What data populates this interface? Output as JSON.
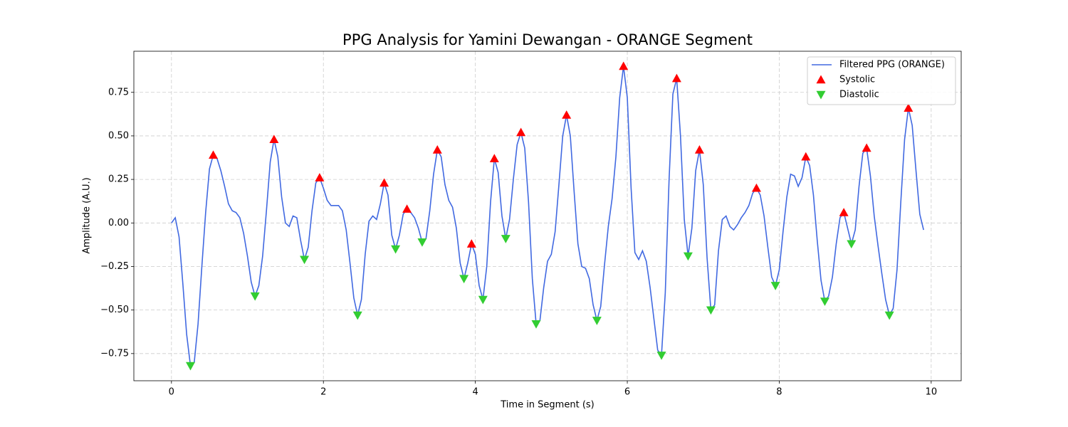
{
  "chart_data": {
    "type": "line",
    "title": "PPG Analysis for Yamini Dewangan - ORANGE Segment",
    "xlabel": "Time in Segment (s)",
    "ylabel": "Amplitude (A.U.)",
    "xlim": [
      -0.495,
      10.395
    ],
    "ylim": [
      -0.906,
      0.986
    ],
    "xticks": [
      0,
      2,
      4,
      6,
      8,
      10
    ],
    "yticks": [
      {
        "value": -0.75,
        "label": "−0.75"
      },
      {
        "value": -0.5,
        "label": "−0.50"
      },
      {
        "value": -0.25,
        "label": "−0.25"
      },
      {
        "value": 0,
        "label": "0.00"
      },
      0.25,
      {
        "value": 0.5,
        "label": "0.50"
      },
      0.75
    ],
    "grid": true,
    "legend": "upper right",
    "series": [
      {
        "name": "Filtered PPG (ORANGE)",
        "color": "#4169e1",
        "x": [
          0,
          0.05,
          0.1,
          0.15,
          0.2,
          0.25,
          0.3,
          0.35,
          0.4,
          0.45,
          0.5,
          0.55,
          0.6,
          0.65,
          0.7,
          0.75,
          0.8,
          0.85,
          0.9,
          0.95,
          1,
          1.05,
          1.1,
          1.15,
          1.2,
          1.25,
          1.3,
          1.35,
          1.4,
          1.45,
          1.5,
          1.55,
          1.6,
          1.65,
          1.7,
          1.75,
          1.8,
          1.85,
          1.9,
          1.95,
          2,
          2.05,
          2.1,
          2.15,
          2.2,
          2.25,
          2.3,
          2.35,
          2.4,
          2.45,
          2.5,
          2.55,
          2.6,
          2.65,
          2.7,
          2.75,
          2.8,
          2.85,
          2.9,
          2.95,
          3,
          3.05,
          3.1,
          3.15,
          3.2,
          3.25,
          3.3,
          3.35,
          3.4,
          3.45,
          3.5,
          3.55,
          3.6,
          3.65,
          3.7,
          3.75,
          3.8,
          3.85,
          3.9,
          3.95,
          4,
          4.05,
          4.1,
          4.15,
          4.2,
          4.25,
          4.3,
          4.35,
          4.4,
          4.45,
          4.5,
          4.55,
          4.6,
          4.65,
          4.7,
          4.75,
          4.8,
          4.85,
          4.9,
          4.95,
          5,
          5.05,
          5.1,
          5.15,
          5.2,
          5.25,
          5.3,
          5.35,
          5.4,
          5.45,
          5.5,
          5.55,
          5.6,
          5.65,
          5.7,
          5.75,
          5.8,
          5.85,
          5.9,
          5.95,
          6,
          6.05,
          6.1,
          6.15,
          6.2,
          6.25,
          6.3,
          6.35,
          6.4,
          6.45,
          6.5,
          6.55,
          6.6,
          6.65,
          6.7,
          6.75,
          6.8,
          6.85,
          6.9,
          6.95,
          7,
          7.05,
          7.1,
          7.15,
          7.2,
          7.25,
          7.3,
          7.35,
          7.4,
          7.45,
          7.5,
          7.55,
          7.6,
          7.65,
          7.7,
          7.75,
          7.8,
          7.85,
          7.9,
          7.95,
          8,
          8.05,
          8.1,
          8.15,
          8.2,
          8.25,
          8.3,
          8.35,
          8.4,
          8.45,
          8.5,
          8.55,
          8.6,
          8.65,
          8.7,
          8.75,
          8.8,
          8.85,
          8.9,
          8.95,
          9,
          9.05,
          9.1,
          9.15,
          9.2,
          9.25,
          9.3,
          9.35,
          9.4,
          9.45,
          9.5,
          9.55,
          9.6,
          9.65,
          9.7,
          9.75,
          9.8,
          9.85,
          9.9
        ],
        "values": [
          0,
          0.03,
          -0.08,
          -0.35,
          -0.64,
          -0.82,
          -0.8,
          -0.58,
          -0.25,
          0.06,
          0.31,
          0.39,
          0.37,
          0.3,
          0.21,
          0.11,
          0.07,
          0.06,
          0.03,
          -0.06,
          -0.19,
          -0.34,
          -0.42,
          -0.36,
          -0.19,
          0.07,
          0.35,
          0.48,
          0.38,
          0.15,
          0,
          -0.02,
          0.04,
          0.03,
          -0.1,
          -0.21,
          -0.14,
          0.07,
          0.23,
          0.26,
          0.2,
          0.13,
          0.1,
          0.1,
          0.1,
          0.07,
          -0.04,
          -0.23,
          -0.43,
          -0.53,
          -0.44,
          -0.18,
          0.01,
          0.04,
          0.02,
          0.11,
          0.23,
          0.16,
          -0.07,
          -0.15,
          -0.07,
          0.05,
          0.08,
          0.06,
          0.03,
          -0.03,
          -0.11,
          -0.09,
          0.07,
          0.28,
          0.42,
          0.38,
          0.22,
          0.13,
          0.09,
          -0.03,
          -0.23,
          -0.32,
          -0.23,
          -0.12,
          -0.18,
          -0.36,
          -0.44,
          -0.25,
          0.12,
          0.37,
          0.29,
          0.04,
          -0.09,
          0.02,
          0.25,
          0.45,
          0.52,
          0.43,
          0.12,
          -0.32,
          -0.58,
          -0.56,
          -0.37,
          -0.22,
          -0.18,
          -0.05,
          0.22,
          0.5,
          0.62,
          0.5,
          0.18,
          -0.12,
          -0.25,
          -0.26,
          -0.32,
          -0.47,
          -0.56,
          -0.48,
          -0.24,
          -0.02,
          0.14,
          0.38,
          0.72,
          0.9,
          0.72,
          0.2,
          -0.17,
          -0.21,
          -0.16,
          -0.22,
          -0.37,
          -0.55,
          -0.73,
          -0.76,
          -0.4,
          0.25,
          0.74,
          0.83,
          0.5,
          0.02,
          -0.19,
          -0.03,
          0.3,
          0.42,
          0.22,
          -0.2,
          -0.5,
          -0.47,
          -0.16,
          0.02,
          0.04,
          -0.02,
          -0.04,
          -0.01,
          0.03,
          0.06,
          0.1,
          0.17,
          0.2,
          0.16,
          0.04,
          -0.14,
          -0.31,
          -0.36,
          -0.27,
          -0.05,
          0.15,
          0.28,
          0.27,
          0.21,
          0.26,
          0.38,
          0.33,
          0.16,
          -0.1,
          -0.33,
          -0.45,
          -0.42,
          -0.31,
          -0.12,
          0.03,
          0.06,
          -0.03,
          -0.12,
          -0.04,
          0.21,
          0.4,
          0.43,
          0.27,
          0.04,
          -0.13,
          -0.29,
          -0.44,
          -0.53,
          -0.49,
          -0.27,
          0.12,
          0.48,
          0.66,
          0.56,
          0.3,
          0.05,
          -0.04
        ]
      },
      {
        "name": "Systolic",
        "type": "scatter",
        "marker": "triangle-up",
        "color": "#ff0000",
        "x": [
          0.55,
          1.35,
          1.95,
          2.8,
          3.1,
          3.5,
          3.95,
          4.25,
          4.6,
          5.2,
          5.95,
          6.65,
          6.95,
          7.7,
          8.35,
          8.85,
          9.15,
          9.7
        ],
        "values": [
          0.39,
          0.48,
          0.26,
          0.23,
          0.08,
          0.42,
          -0.12,
          0.37,
          0.52,
          0.62,
          0.9,
          0.83,
          0.42,
          0.2,
          0.38,
          0.06,
          0.43,
          0.66
        ]
      },
      {
        "name": "Diastolic",
        "type": "scatter",
        "marker": "triangle-down",
        "color": "#32cd32",
        "x": [
          0.25,
          1.1,
          1.75,
          2.45,
          2.95,
          3.3,
          3.85,
          4.1,
          4.4,
          4.8,
          5.6,
          6.45,
          6.8,
          7.1,
          7.95,
          8.6,
          8.95,
          9.45
        ],
        "values": [
          -0.82,
          -0.42,
          -0.21,
          -0.53,
          -0.15,
          -0.11,
          -0.32,
          -0.44,
          -0.09,
          -0.58,
          -0.56,
          -0.76,
          -0.19,
          -0.5,
          -0.36,
          -0.45,
          -0.12,
          -0.53
        ]
      }
    ]
  }
}
